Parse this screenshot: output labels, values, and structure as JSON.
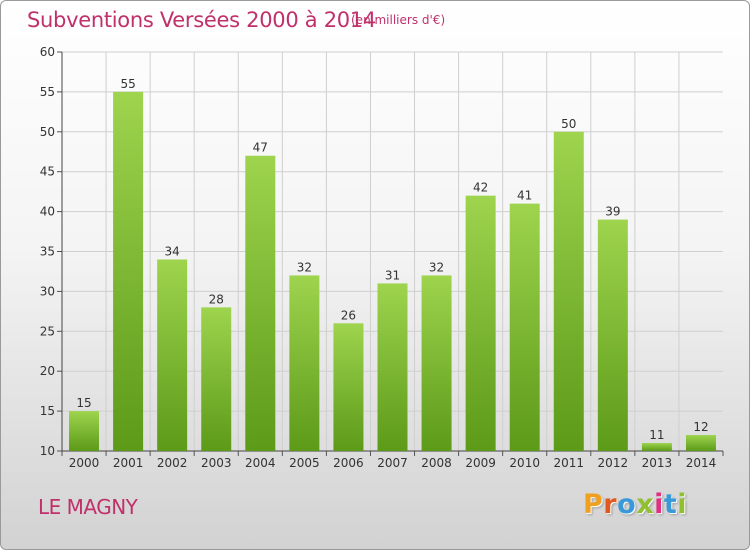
{
  "header": {
    "title": "Subventions Versées 2000 à 2014",
    "subtitle": "(en milliers d'€)"
  },
  "footer": {
    "commune": "LE MAGNY",
    "logo_letters": [
      "P",
      "r",
      "o",
      "x",
      "i",
      "t",
      "i"
    ],
    "logo_colors": [
      "#f0a020",
      "#e05a20",
      "#3a9ad9",
      "#90c030",
      "#e03080",
      "#3a9ad9",
      "#90c030"
    ]
  },
  "colors": {
    "title": "#c0306a",
    "bar_top": "#9ed44e",
    "bar_bottom": "#5c9a18",
    "grid": "#cfcfcf"
  },
  "chart_data": {
    "type": "bar",
    "title": "Subventions Versées 2000 à 2014",
    "subtitle": "(en milliers d'€)",
    "categories": [
      "2000",
      "2001",
      "2002",
      "2003",
      "2004",
      "2005",
      "2006",
      "2007",
      "2008",
      "2009",
      "2010",
      "2011",
      "2012",
      "2013",
      "2014"
    ],
    "values": [
      15,
      55,
      34,
      28,
      47,
      32,
      26,
      31,
      32,
      42,
      41,
      50,
      39,
      11,
      12
    ],
    "ylim": [
      10,
      60
    ],
    "yticks": [
      10,
      15,
      20,
      25,
      30,
      35,
      40,
      45,
      50,
      55,
      60
    ],
    "grid": true,
    "legend": "none"
  }
}
